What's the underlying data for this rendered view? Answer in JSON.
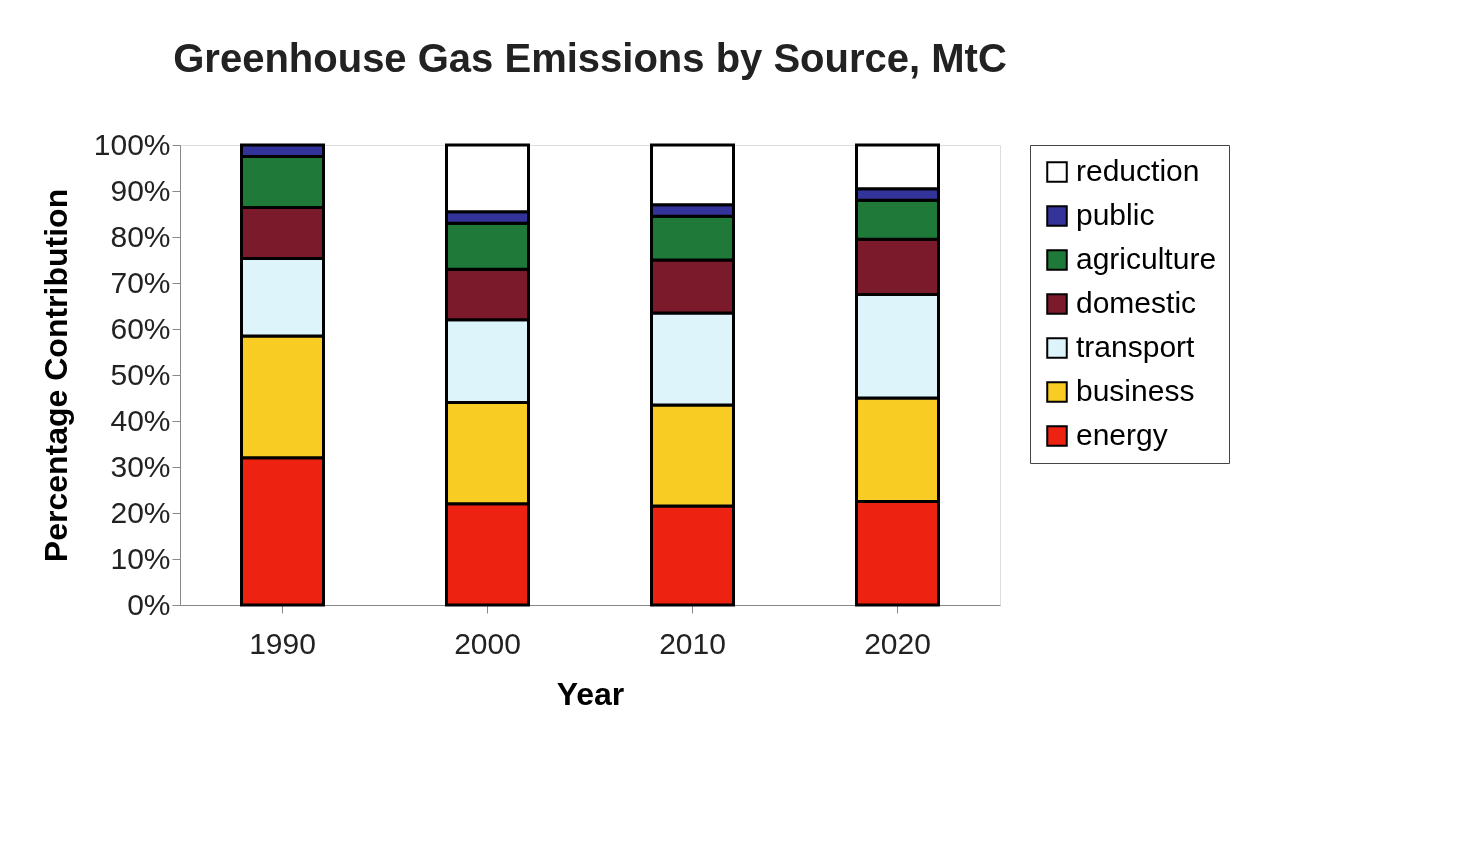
{
  "chart_data": {
    "type": "bar",
    "title": "Greenhouse Gas Emissions by Source, MtC",
    "xlabel": "Year",
    "ylabel": "Percentage Contribution",
    "categories": [
      "1990",
      "2000",
      "2010",
      "2020"
    ],
    "stacked": true,
    "legend": "right",
    "grid": false,
    "ylim": [
      0,
      100
    ],
    "yticks": [
      {
        "value": 0,
        "label": "0%"
      },
      {
        "value": 10,
        "label": "10%"
      },
      {
        "value": 20,
        "label": "20%"
      },
      {
        "value": 30,
        "label": "30%"
      },
      {
        "value": 40,
        "label": "40%"
      },
      {
        "value": 50,
        "label": "50%"
      },
      {
        "value": 60,
        "label": "60%"
      },
      {
        "value": 70,
        "label": "70%"
      },
      {
        "value": 80,
        "label": "80%"
      },
      {
        "value": 90,
        "label": "90%"
      },
      {
        "value": 100,
        "label": "100%"
      }
    ],
    "series": [
      {
        "name": "energy",
        "color": "#ee2211",
        "values": [
          32,
          22,
          21.5,
          22.5
        ]
      },
      {
        "name": "business",
        "color": "#f8cc22",
        "values": [
          26.5,
          22,
          22,
          22.5
        ]
      },
      {
        "name": "transport",
        "color": "#ddf4fb",
        "values": [
          16.8,
          18,
          20,
          22.5
        ]
      },
      {
        "name": "domestic",
        "color": "#7a1a2a",
        "values": [
          11.1,
          11,
          11.5,
          12
        ]
      },
      {
        "name": "agriculture",
        "color": "#1f7a3a",
        "values": [
          11.1,
          10,
          9.5,
          8.5
        ]
      },
      {
        "name": "public",
        "color": "#333399",
        "values": [
          2.5,
          2.5,
          2.5,
          2.5
        ]
      },
      {
        "name": "reduction",
        "color": "#ffffff",
        "values": [
          null,
          14.5,
          13,
          9.5
        ]
      }
    ]
  }
}
